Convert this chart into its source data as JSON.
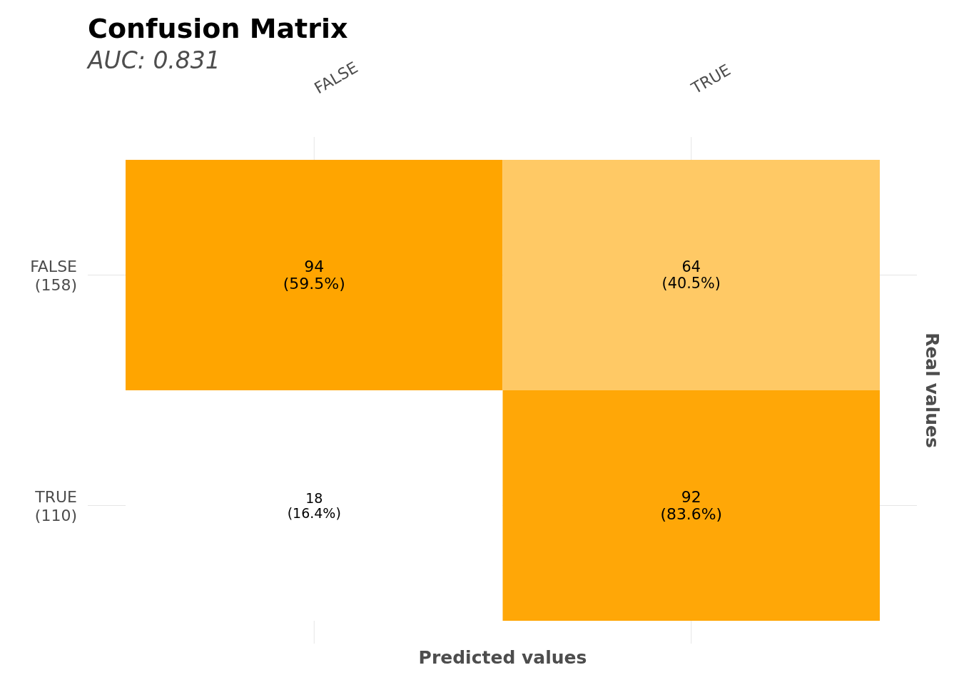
{
  "chart_data": {
    "type": "heatmap",
    "title": "Confusion Matrix",
    "subtitle": "AUC: 0.831",
    "xlabel": "Predicted values",
    "ylabel": "Real values",
    "categories": [
      "FALSE",
      "TRUE"
    ],
    "y_categories": [
      "FALSE\n(158)",
      "TRUE\n(110)"
    ],
    "cells": [
      [
        94,
        64
      ],
      [
        18,
        92
      ]
    ],
    "annotations": [
      "(59.5%)",
      "(40.5%)",
      "(16.4%)",
      "(83.6%)"
    ],
    "data_labels": true,
    "colors": [
      "#ffffff",
      "#ffa500"
    ],
    "grid": true
  }
}
